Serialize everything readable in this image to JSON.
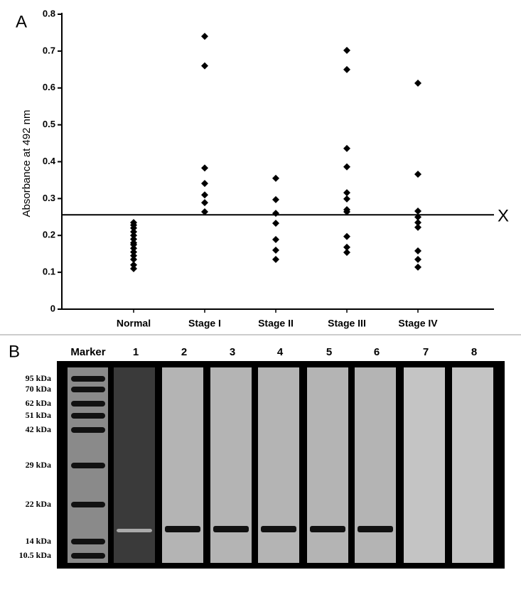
{
  "chart_data": {
    "type": "strip",
    "panel_label": "A",
    "y_label": "Absorbance at 492 nm",
    "categories": [
      "Normal",
      "Stage I",
      "Stage II",
      "Stage III",
      "Stage IV"
    ],
    "values": [
      [
        0.235,
        0.228,
        0.22,
        0.21,
        0.2,
        0.19,
        0.18,
        0.175,
        0.165,
        0.155,
        0.145,
        0.135,
        0.12,
        0.11
      ],
      [
        0.74,
        0.66,
        0.383,
        0.341,
        0.31,
        0.289,
        0.264
      ],
      [
        0.355,
        0.297,
        0.26,
        0.233,
        0.189,
        0.16,
        0.135
      ],
      [
        0.702,
        0.65,
        0.436,
        0.386,
        0.316,
        0.299,
        0.27,
        0.264,
        0.197,
        0.168,
        0.154
      ],
      [
        0.613,
        0.366,
        0.266,
        0.25,
        0.235,
        0.222,
        0.158,
        0.135,
        0.114
      ]
    ],
    "color": "#000000",
    "reference_line": {
      "value": 0.256,
      "label": "X"
    },
    "ylim": [
      0,
      0.8
    ],
    "yticks": [
      0,
      0.1,
      0.2,
      0.3,
      0.4,
      0.5,
      0.6,
      0.7,
      0.8
    ]
  },
  "blot": {
    "panel_label": "B",
    "marker_label": "Marker",
    "lanes": [
      "1",
      "2",
      "3",
      "4",
      "5",
      "6",
      "7",
      "8"
    ],
    "markers": [
      "95 kDa",
      "70 kDa",
      "62 kDa",
      "51 kDa",
      "42 kDa",
      "29 kDa",
      "22 kDa",
      "14 kDa",
      "10.5 kDa"
    ]
  }
}
